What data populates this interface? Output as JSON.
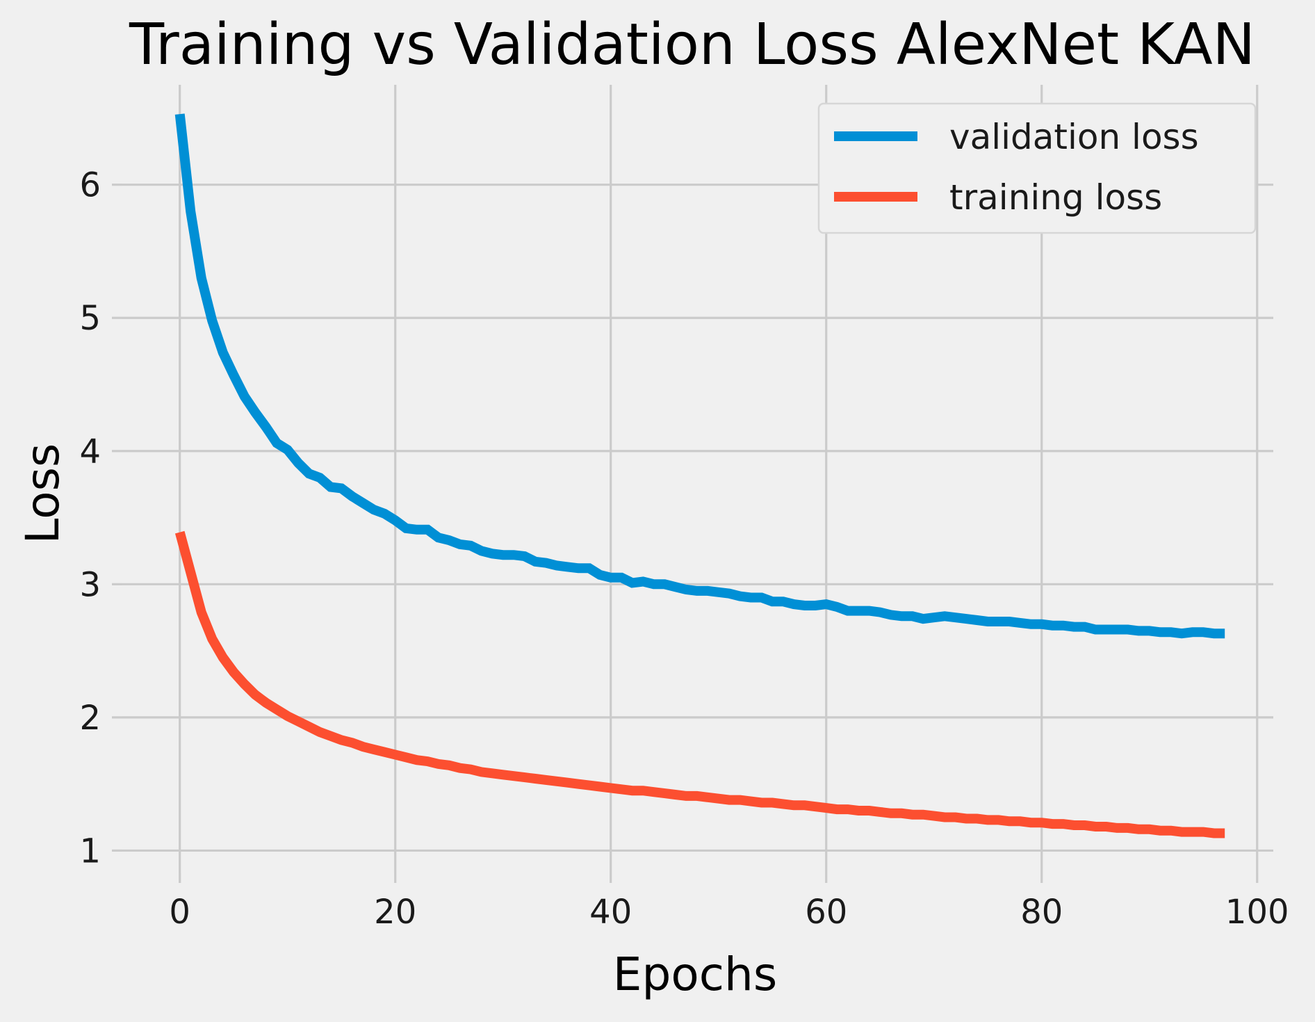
{
  "chart_data": {
    "type": "line",
    "title": "Training vs Validation Loss AlexNet KAN",
    "xlabel": "Epochs",
    "ylabel": "Loss",
    "xlim": [
      -5.4,
      101.5
    ],
    "ylim": [
      0.83,
      6.75
    ],
    "x_ticks": [
      0,
      20,
      40,
      60,
      80,
      100
    ],
    "y_ticks": [
      1,
      2,
      3,
      4,
      5,
      6
    ],
    "grid": true,
    "legend_position": "top-right",
    "series": [
      {
        "name": "validation loss",
        "color": "#008fd5",
        "x": [
          0,
          1,
          2,
          3,
          4,
          5,
          6,
          7,
          8,
          9,
          10,
          11,
          12,
          13,
          14,
          15,
          16,
          17,
          18,
          19,
          20,
          21,
          22,
          23,
          24,
          25,
          26,
          27,
          28,
          29,
          30,
          31,
          32,
          33,
          34,
          35,
          36,
          37,
          38,
          39,
          40,
          41,
          42,
          43,
          44,
          45,
          46,
          47,
          48,
          49,
          50,
          51,
          52,
          53,
          54,
          55,
          56,
          57,
          58,
          59,
          60,
          61,
          62,
          63,
          64,
          65,
          66,
          67,
          68,
          69,
          70,
          71,
          72,
          73,
          74,
          75,
          76,
          77,
          78,
          79,
          80,
          81,
          82,
          83,
          84,
          85,
          86,
          87,
          88,
          89,
          90,
          91,
          92,
          93,
          94,
          95,
          96,
          97
        ],
        "y": [
          6.53,
          5.8,
          5.3,
          4.98,
          4.74,
          4.57,
          4.41,
          4.29,
          4.18,
          4.06,
          4.01,
          3.91,
          3.83,
          3.8,
          3.73,
          3.72,
          3.66,
          3.61,
          3.56,
          3.53,
          3.48,
          3.42,
          3.41,
          3.41,
          3.35,
          3.33,
          3.3,
          3.29,
          3.25,
          3.23,
          3.22,
          3.22,
          3.21,
          3.17,
          3.16,
          3.14,
          3.13,
          3.12,
          3.12,
          3.07,
          3.05,
          3.05,
          3.01,
          3.02,
          3.0,
          3.0,
          2.98,
          2.96,
          2.95,
          2.95,
          2.94,
          2.93,
          2.91,
          2.9,
          2.9,
          2.87,
          2.87,
          2.85,
          2.84,
          2.84,
          2.85,
          2.83,
          2.8,
          2.8,
          2.8,
          2.79,
          2.77,
          2.76,
          2.76,
          2.74,
          2.75,
          2.76,
          2.75,
          2.74,
          2.73,
          2.72,
          2.72,
          2.72,
          2.71,
          2.7,
          2.7,
          2.69,
          2.69,
          2.68,
          2.68,
          2.66,
          2.66,
          2.66,
          2.66,
          2.65,
          2.65,
          2.64,
          2.64,
          2.63,
          2.64,
          2.64,
          2.63,
          2.63
        ]
      },
      {
        "name": "training loss",
        "color": "#fc4f30",
        "x": [
          0,
          1,
          2,
          3,
          4,
          5,
          6,
          7,
          8,
          9,
          10,
          11,
          12,
          13,
          14,
          15,
          16,
          17,
          18,
          19,
          20,
          21,
          22,
          23,
          24,
          25,
          26,
          27,
          28,
          29,
          30,
          31,
          32,
          33,
          34,
          35,
          36,
          37,
          38,
          39,
          40,
          41,
          42,
          43,
          44,
          45,
          46,
          47,
          48,
          49,
          50,
          51,
          52,
          53,
          54,
          55,
          56,
          57,
          58,
          59,
          60,
          61,
          62,
          63,
          64,
          65,
          66,
          67,
          68,
          69,
          70,
          71,
          72,
          73,
          74,
          75,
          76,
          77,
          78,
          79,
          80,
          81,
          82,
          83,
          84,
          85,
          86,
          87,
          88,
          89,
          90,
          91,
          92,
          93,
          94,
          95,
          96,
          97
        ],
        "y": [
          3.39,
          3.09,
          2.79,
          2.59,
          2.45,
          2.34,
          2.25,
          2.17,
          2.11,
          2.06,
          2.01,
          1.97,
          1.93,
          1.89,
          1.86,
          1.83,
          1.81,
          1.78,
          1.76,
          1.74,
          1.72,
          1.7,
          1.68,
          1.67,
          1.65,
          1.64,
          1.62,
          1.61,
          1.59,
          1.58,
          1.57,
          1.56,
          1.55,
          1.54,
          1.53,
          1.52,
          1.51,
          1.5,
          1.49,
          1.48,
          1.47,
          1.46,
          1.45,
          1.45,
          1.44,
          1.43,
          1.42,
          1.41,
          1.41,
          1.4,
          1.39,
          1.38,
          1.38,
          1.37,
          1.36,
          1.36,
          1.35,
          1.34,
          1.34,
          1.33,
          1.32,
          1.31,
          1.31,
          1.3,
          1.3,
          1.29,
          1.28,
          1.28,
          1.27,
          1.27,
          1.26,
          1.25,
          1.25,
          1.24,
          1.24,
          1.23,
          1.23,
          1.22,
          1.22,
          1.21,
          1.21,
          1.2,
          1.2,
          1.19,
          1.19,
          1.18,
          1.18,
          1.17,
          1.17,
          1.16,
          1.16,
          1.15,
          1.15,
          1.14,
          1.14,
          1.14,
          1.13,
          1.13
        ]
      }
    ]
  }
}
